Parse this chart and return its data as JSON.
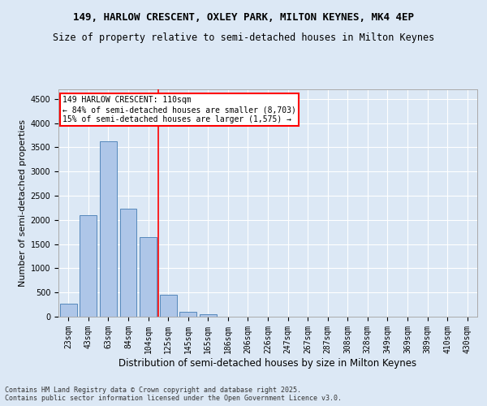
{
  "title": "149, HARLOW CRESCENT, OXLEY PARK, MILTON KEYNES, MK4 4EP",
  "subtitle": "Size of property relative to semi-detached houses in Milton Keynes",
  "xlabel": "Distribution of semi-detached houses by size in Milton Keynes",
  "ylabel": "Number of semi-detached properties",
  "categories": [
    "23sqm",
    "43sqm",
    "63sqm",
    "84sqm",
    "104sqm",
    "125sqm",
    "145sqm",
    "165sqm",
    "186sqm",
    "206sqm",
    "226sqm",
    "247sqm",
    "267sqm",
    "287sqm",
    "308sqm",
    "328sqm",
    "349sqm",
    "369sqm",
    "389sqm",
    "410sqm",
    "430sqm"
  ],
  "values": [
    270,
    2100,
    3620,
    2230,
    1640,
    450,
    100,
    50,
    0,
    0,
    0,
    0,
    0,
    0,
    0,
    0,
    0,
    0,
    0,
    0,
    0
  ],
  "bar_color": "#aec6e8",
  "bar_edge_color": "#5588bb",
  "background_color": "#dce8f5",
  "grid_color": "#ffffff",
  "vline_x_index": 4.5,
  "vline_color": "red",
  "annotation_title": "149 HARLOW CRESCENT: 110sqm",
  "annotation_line1": "← 84% of semi-detached houses are smaller (8,703)",
  "annotation_line2": "15% of semi-detached houses are larger (1,575) →",
  "annotation_box_color": "white",
  "annotation_box_edge_color": "red",
  "ylim": [
    0,
    4700
  ],
  "yticks": [
    0,
    500,
    1000,
    1500,
    2000,
    2500,
    3000,
    3500,
    4000,
    4500
  ],
  "footer_line1": "Contains HM Land Registry data © Crown copyright and database right 2025.",
  "footer_line2": "Contains public sector information licensed under the Open Government Licence v3.0.",
  "title_fontsize": 9,
  "subtitle_fontsize": 8.5,
  "tick_fontsize": 7,
  "ylabel_fontsize": 8,
  "xlabel_fontsize": 8.5,
  "footer_fontsize": 6,
  "annot_fontsize": 7
}
